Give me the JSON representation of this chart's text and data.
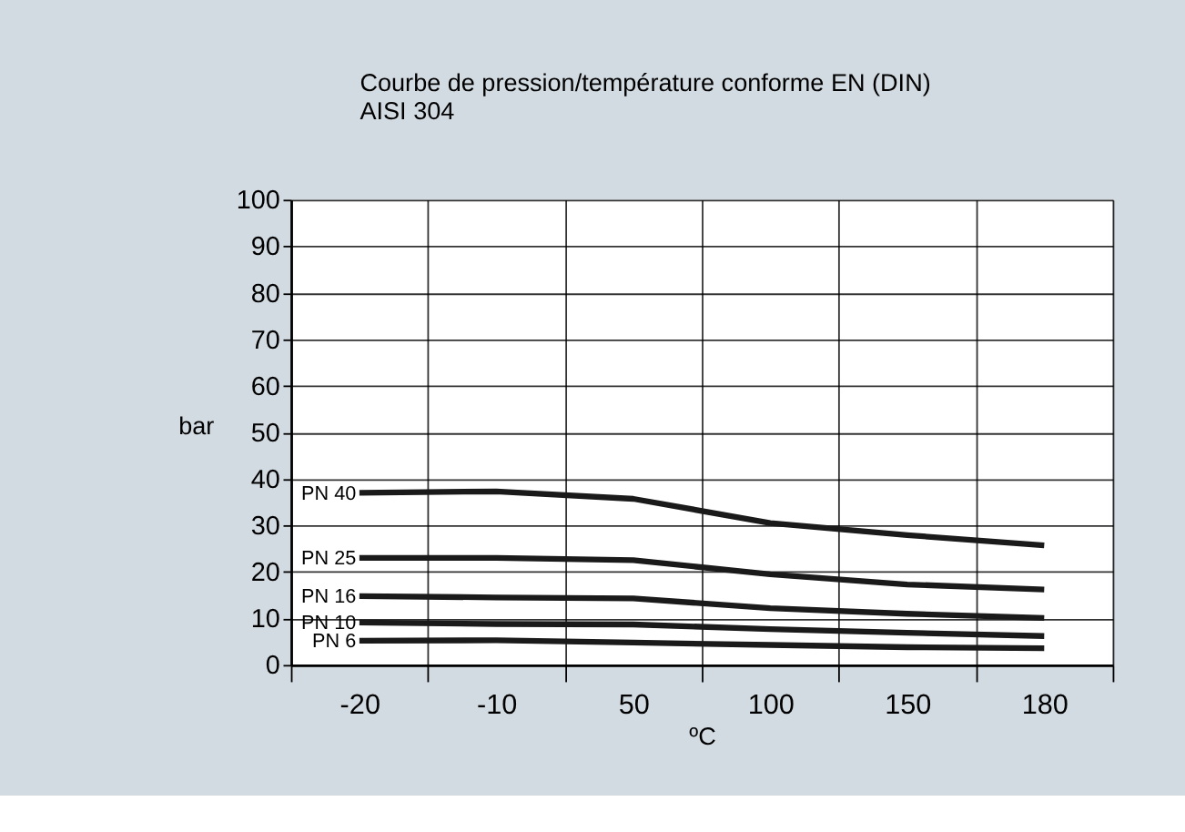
{
  "chart_data": {
    "type": "line",
    "title": "Courbe de pression/température conforme EN (DIN)",
    "subtitle": "AISI 304",
    "xlabel": "ºC",
    "ylabel": "bar",
    "categories": [
      "-20",
      "-10",
      "50",
      "100",
      "150",
      "180"
    ],
    "ylim": [
      0,
      100
    ],
    "yticks": [
      0,
      10,
      20,
      30,
      40,
      50,
      60,
      70,
      80,
      90,
      100
    ],
    "grid": true,
    "marker": "none",
    "line_style": "solid",
    "series": [
      {
        "name": "PN 40",
        "color": "#1a1a1a",
        "values": [
          37.0,
          37.3,
          35.7,
          30.5,
          27.9,
          25.7
        ]
      },
      {
        "name": "PN 25",
        "color": "#1a1a1a",
        "values": [
          23.0,
          23.0,
          22.5,
          19.5,
          17.3,
          16.2
        ]
      },
      {
        "name": "PN 16",
        "color": "#1a1a1a",
        "values": [
          14.8,
          14.5,
          14.3,
          12.2,
          11.0,
          10.1
        ]
      },
      {
        "name": "PN 10",
        "color": "#1a1a1a",
        "values": [
          9.1,
          8.8,
          8.7,
          7.7,
          6.9,
          6.2
        ]
      },
      {
        "name": "PN 6",
        "color": "#1a1a1a",
        "values": [
          5.2,
          5.3,
          4.8,
          4.3,
          3.8,
          3.6
        ]
      }
    ]
  }
}
